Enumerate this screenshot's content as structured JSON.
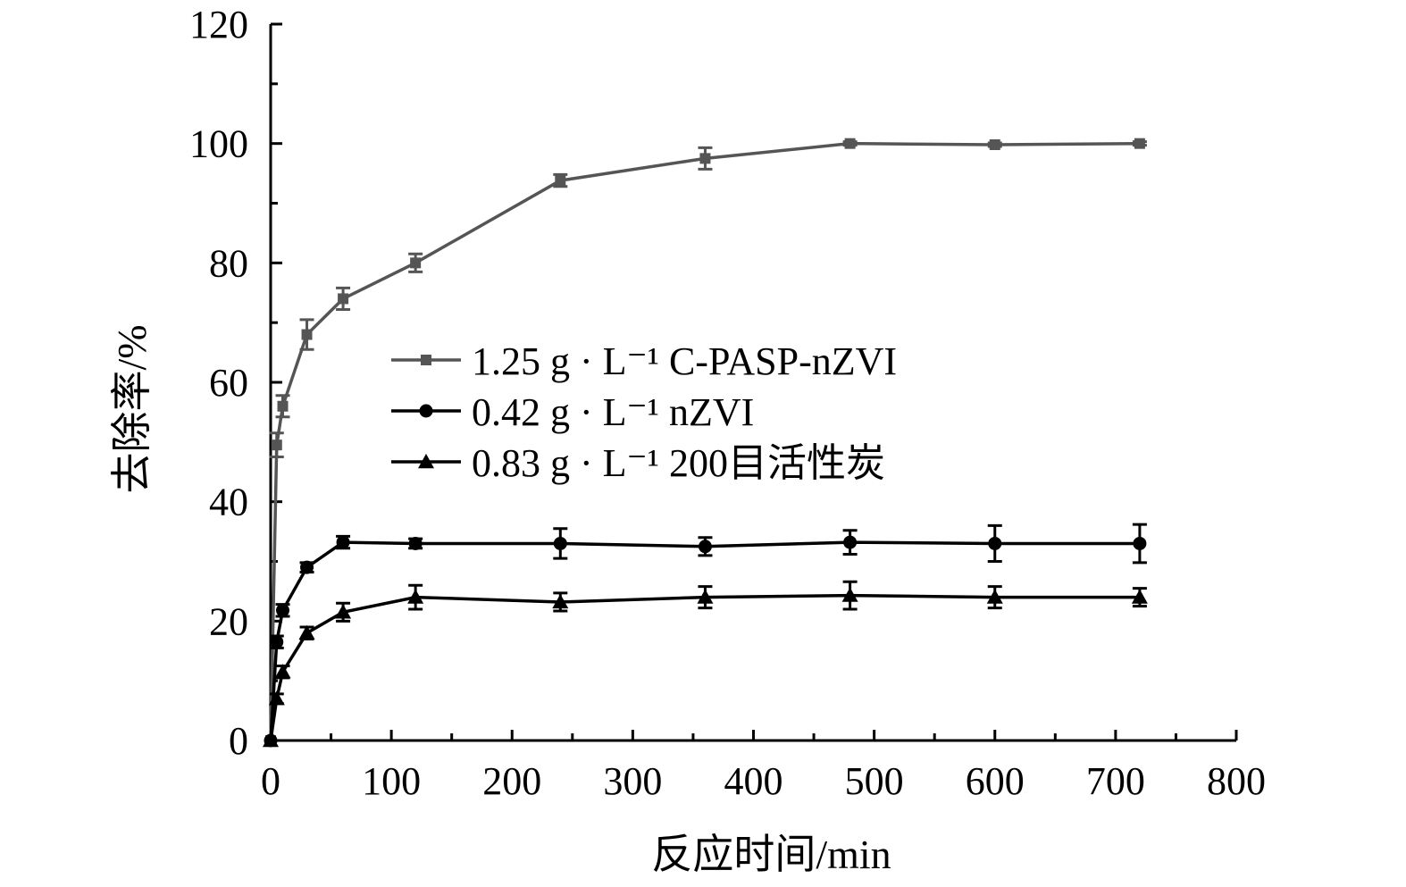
{
  "chart_data": {
    "type": "line",
    "title": "",
    "xlabel": "反应时间/min",
    "ylabel": "去除率/%",
    "xlim": [
      0,
      800
    ],
    "ylim": [
      0,
      120
    ],
    "x_ticks": [
      "0",
      "100",
      "200",
      "300",
      "400",
      "500",
      "600",
      "700",
      "800"
    ],
    "y_ticks": [
      "0",
      "20",
      "40",
      "60",
      "80",
      "100",
      "120"
    ],
    "grid": false,
    "legend_position": "center-left",
    "x": [
      0,
      5,
      10,
      30,
      60,
      120,
      240,
      360,
      480,
      600,
      720
    ],
    "series": [
      {
        "name": "1.25 g · L⁻¹ C-PASP-nZVI",
        "marker": "square",
        "color": "#555555",
        "values": [
          0,
          49.5,
          56,
          68,
          74,
          80,
          93.8,
          97.5,
          100,
          99.8,
          100
        ],
        "errors": [
          0,
          2,
          1.8,
          2.5,
          1.8,
          1.5,
          1,
          1.8,
          0.3,
          0.3,
          0.3
        ]
      },
      {
        "name": "0.42 g · L⁻¹ nZVI",
        "marker": "circle",
        "color": "#000000",
        "values": [
          0,
          16.5,
          21.8,
          29,
          33.2,
          33,
          33,
          32.5,
          33.2,
          33,
          33
        ],
        "errors": [
          0,
          1,
          1,
          0.8,
          1,
          0.8,
          2.5,
          1.5,
          2,
          3,
          3.2
        ]
      },
      {
        "name": "0.83 g · L⁻¹ 200目活性炭",
        "marker": "triangle",
        "color": "#000000",
        "values": [
          0,
          7,
          11.5,
          18,
          21.5,
          24,
          23.2,
          24,
          24.3,
          24,
          24
        ],
        "errors": [
          0,
          0.8,
          1,
          1,
          1.5,
          2,
          1.5,
          1.8,
          2.3,
          1.8,
          1.5
        ]
      }
    ]
  }
}
